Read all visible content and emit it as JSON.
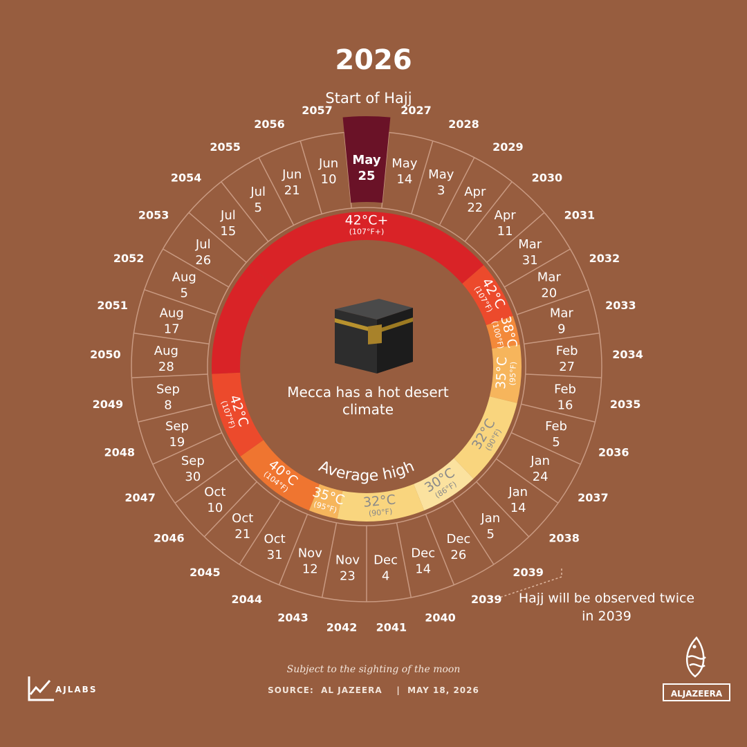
{
  "title": "2026",
  "start_label": "Start of Hajj",
  "center_text": "Mecca has a hot desert climate",
  "average_high_label": "Average high",
  "note": "Hajj will be observed twice in 2039",
  "footnote": "Subject to the sighting of the moon",
  "source": "SOURCE:  AL JAZEERA    |  MAY 18, 2026",
  "logo_left": "AJLABS",
  "logo_right": "ALJAZEERA",
  "colors": {
    "background": "#975d3f",
    "highlight": "#6a1227",
    "ring_lines": "#c99a82",
    "temp_42_plus": "#d92327",
    "temp_42": "#ec4a2c",
    "temp_40": "#ef7530",
    "temp_38": "#f3893a",
    "temp_35": "#f6b55c",
    "temp_32": "#f9d57e",
    "temp_30": "#fbe29f"
  },
  "chart_data": {
    "type": "radial-timeline",
    "highlighted_index": 0,
    "entries": [
      {
        "year": "",
        "month": "May",
        "day": "25"
      },
      {
        "year": "2027",
        "month": "May",
        "day": "14"
      },
      {
        "year": "2028",
        "month": "May",
        "day": "3"
      },
      {
        "year": "2029",
        "month": "Apr",
        "day": "22"
      },
      {
        "year": "2030",
        "month": "Apr",
        "day": "11"
      },
      {
        "year": "2031",
        "month": "Mar",
        "day": "31"
      },
      {
        "year": "2032",
        "month": "Mar",
        "day": "20"
      },
      {
        "year": "2033",
        "month": "Mar",
        "day": "9"
      },
      {
        "year": "2034",
        "month": "Feb",
        "day": "27"
      },
      {
        "year": "2035",
        "month": "Feb",
        "day": "16"
      },
      {
        "year": "2036",
        "month": "Feb",
        "day": "5"
      },
      {
        "year": "2037",
        "month": "Jan",
        "day": "24"
      },
      {
        "year": "2038",
        "month": "Jan",
        "day": "14"
      },
      {
        "year": "2039",
        "month": "Jan",
        "day": "5"
      },
      {
        "year": "2039",
        "month": "Dec",
        "day": "26"
      },
      {
        "year": "2040",
        "month": "Dec",
        "day": "14"
      },
      {
        "year": "2041",
        "month": "Dec",
        "day": "4"
      },
      {
        "year": "2042",
        "month": "Nov",
        "day": "23"
      },
      {
        "year": "2043",
        "month": "Nov",
        "day": "12"
      },
      {
        "year": "2044",
        "month": "Oct",
        "day": "31"
      },
      {
        "year": "2045",
        "month": "Oct",
        "day": "21"
      },
      {
        "year": "2046",
        "month": "Oct",
        "day": "10"
      },
      {
        "year": "2047",
        "month": "Sep",
        "day": "30"
      },
      {
        "year": "2048",
        "month": "Sep",
        "day": "19"
      },
      {
        "year": "2049",
        "month": "Sep",
        "day": "8"
      },
      {
        "year": "2050",
        "month": "Aug",
        "day": "28"
      },
      {
        "year": "2051",
        "month": "Aug",
        "day": "17"
      },
      {
        "year": "2052",
        "month": "Aug",
        "day": "5"
      },
      {
        "year": "2053",
        "month": "Jul",
        "day": "26"
      },
      {
        "year": "2054",
        "month": "Jul",
        "day": "15"
      },
      {
        "year": "2055",
        "month": "Jul",
        "day": "5"
      },
      {
        "year": "2056",
        "month": "Jun",
        "day": "21"
      },
      {
        "year": "2057",
        "month": "Jun",
        "day": "10"
      }
    ],
    "temperature_bands": [
      {
        "from_index": 29,
        "to_index": 5,
        "label": "42°C+",
        "sublabel": "(107°F+)",
        "color_key": "temp_42_plus",
        "text_color": "#ffffff"
      },
      {
        "from_index": 5,
        "to_index": 7,
        "label": "42°C",
        "sublabel": "(107°F)",
        "color_key": "temp_42",
        "text_color": "#ffffff"
      },
      {
        "from_index": 7,
        "to_index": 8,
        "label": "38°C",
        "sublabel": "(100°F)",
        "color_key": "temp_38",
        "text_color": "#ffffff"
      },
      {
        "from_index": 8,
        "to_index": 10,
        "label": "35°C",
        "sublabel": "(95°F)",
        "color_key": "temp_35",
        "text_color": "#ffffff"
      },
      {
        "from_index": 10,
        "to_index": 13,
        "label": "32°C",
        "sublabel": "(90°F)",
        "color_key": "temp_32",
        "text_color": "#8a8a8a"
      },
      {
        "from_index": 13,
        "to_index": 15,
        "label": "30°C",
        "sublabel": "(86°F)",
        "color_key": "temp_30",
        "text_color": "#8a8a8a"
      },
      {
        "from_index": 15,
        "to_index": 18,
        "label": "32°C",
        "sublabel": "(90°F)",
        "color_key": "temp_32",
        "text_color": "#8a8a8a"
      },
      {
        "from_index": 18,
        "to_index": 19,
        "label": "35°C",
        "sublabel": "(95°F)",
        "color_key": "temp_35",
        "text_color": "#ffffff"
      },
      {
        "from_index": 19,
        "to_index": 22,
        "label": "40°C",
        "sublabel": "(104°F)",
        "color_key": "temp_40",
        "text_color": "#ffffff"
      },
      {
        "from_index": 22,
        "to_index": 25,
        "label": "42°C",
        "sublabel": "(107°F)",
        "color_key": "temp_42",
        "text_color": "#ffffff"
      },
      {
        "from_index": 25,
        "to_index": 29,
        "label": "",
        "sublabel": "",
        "color_key": "temp_42_plus",
        "text_color": "#ffffff"
      }
    ]
  }
}
